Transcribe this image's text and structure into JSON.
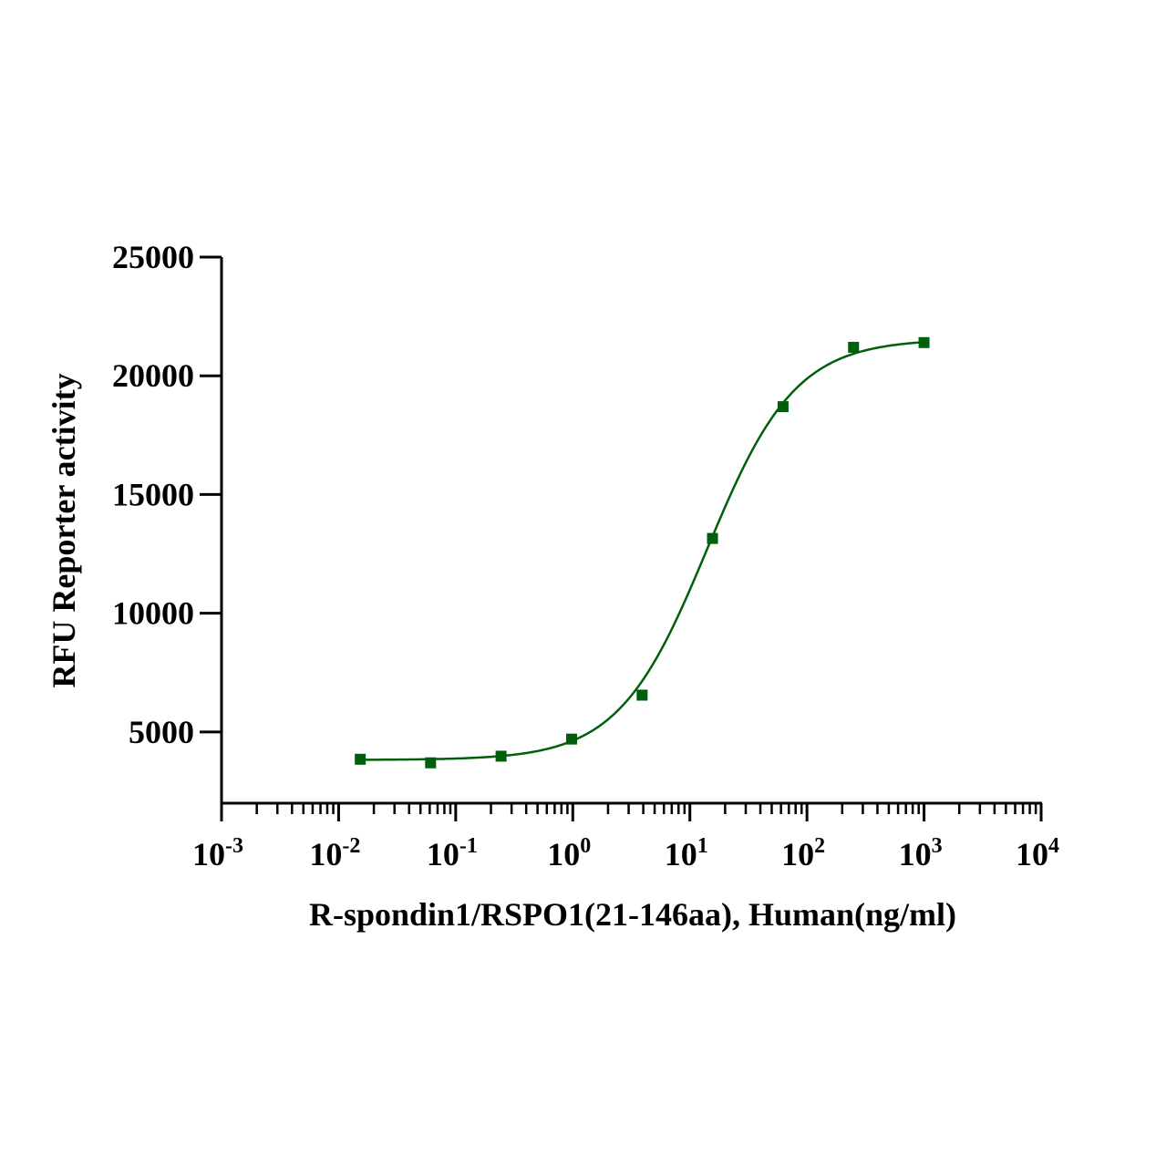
{
  "chart_data": {
    "type": "scatter",
    "title": "",
    "xlabel": "R-spondin1/RSPO1(21-146aa), Human(ng/ml)",
    "ylabel": "RFU Reporter activity",
    "x_scale": "log",
    "xlim": [
      0.001,
      10000
    ],
    "ylim": [
      2000,
      25000
    ],
    "x_ticks": [
      {
        "base": "10",
        "exp": "-3",
        "value": 0.001
      },
      {
        "base": "10",
        "exp": "-2",
        "value": 0.01
      },
      {
        "base": "10",
        "exp": "-1",
        "value": 0.1
      },
      {
        "base": "10",
        "exp": "0",
        "value": 1
      },
      {
        "base": "10",
        "exp": "1",
        "value": 10
      },
      {
        "base": "10",
        "exp": "2",
        "value": 100
      },
      {
        "base": "10",
        "exp": "3",
        "value": 1000
      },
      {
        "base": "10",
        "exp": "4",
        "value": 10000
      }
    ],
    "y_ticks": [
      {
        "label": "5000",
        "value": 5000
      },
      {
        "label": "10000",
        "value": 10000
      },
      {
        "label": "15000",
        "value": 15000
      },
      {
        "label": "20000",
        "value": 20000
      },
      {
        "label": "25000",
        "value": 25000
      }
    ],
    "grid": false,
    "legend": "none",
    "series": [
      {
        "color": "#005f0a",
        "marker": "square",
        "points": [
          {
            "x": 0.0153,
            "y": 3850
          },
          {
            "x": 0.061,
            "y": 3700
          },
          {
            "x": 0.244,
            "y": 3980
          },
          {
            "x": 0.977,
            "y": 4700
          },
          {
            "x": 3.91,
            "y": 6550
          },
          {
            "x": 15.6,
            "y": 13150
          },
          {
            "x": 62.5,
            "y": 18700
          },
          {
            "x": 250,
            "y": 21200
          },
          {
            "x": 1000,
            "y": 21400
          }
        ],
        "fit": {
          "model": "4PL",
          "bottom": 3820,
          "top": 21550,
          "ec50": 14,
          "hill": 1.15,
          "x_range": [
            0.0153,
            1000
          ]
        }
      }
    ]
  }
}
